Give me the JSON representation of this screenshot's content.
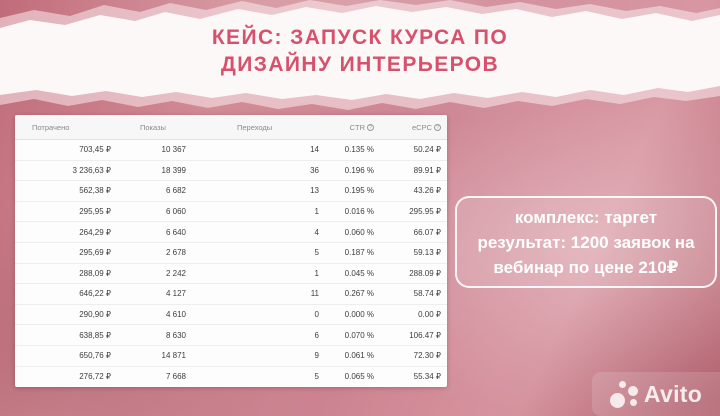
{
  "title": {
    "line1": "КЕЙС: ЗАПУСК КУРСА ПО",
    "line2": "ДИЗАЙНУ ИНТЕРЬЕРОВ"
  },
  "table": {
    "headers": [
      "Потрачено",
      "Показы",
      "Переходы",
      "CTR",
      "eCPC"
    ],
    "info_icon": "?",
    "rows": [
      [
        "703,45 ₽",
        "10 367",
        "14",
        "0.135 %",
        "50.24 ₽"
      ],
      [
        "3 236,63 ₽",
        "18 399",
        "36",
        "0.196 %",
        "89.91 ₽"
      ],
      [
        "562,38 ₽",
        "6 682",
        "13",
        "0.195 %",
        "43.26 ₽"
      ],
      [
        "295,95 ₽",
        "6 060",
        "1",
        "0.016 %",
        "295.95 ₽"
      ],
      [
        "264,29 ₽",
        "6 640",
        "4",
        "0.060 %",
        "66.07 ₽"
      ],
      [
        "295,69 ₽",
        "2 678",
        "5",
        "0.187 %",
        "59.13 ₽"
      ],
      [
        "288,09 ₽",
        "2 242",
        "1",
        "0.045 %",
        "288.09 ₽"
      ],
      [
        "646,22 ₽",
        "4 127",
        "11",
        "0.267 %",
        "58.74 ₽"
      ],
      [
        "290,90 ₽",
        "4 610",
        "0",
        "0.000 %",
        "0.00 ₽"
      ],
      [
        "638,85 ₽",
        "8 630",
        "6",
        "0.070 %",
        "106.47 ₽"
      ],
      [
        "650,76 ₽",
        "14 871",
        "9",
        "0.061 %",
        "72.30 ₽"
      ],
      [
        "276,72 ₽",
        "7 668",
        "5",
        "0.065 %",
        "55.34 ₽"
      ]
    ]
  },
  "result_box": {
    "line1": "комплекс: таргет",
    "line2": "результат: 1200 заявок на",
    "line3": "вебинар по цене 210₽"
  },
  "watermark": {
    "brand": "Avito"
  },
  "colors": {
    "title_pink": "#d7506c",
    "background_pink": "#cc8290",
    "paper_white": "#fcf8f7",
    "result_text": "#ffffff"
  }
}
